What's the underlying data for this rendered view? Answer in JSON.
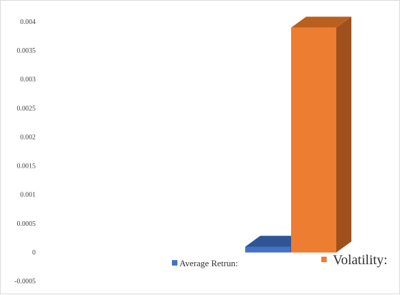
{
  "chart_data": {
    "type": "bar",
    "three_d": true,
    "categories": [
      ""
    ],
    "series": [
      {
        "name": "Average Retrun:",
        "values": [
          0.0001
        ],
        "color": "#4472c4",
        "side_color": "#2f5597",
        "top_color": "#2f5597"
      },
      {
        "name": "Volatility:",
        "values": [
          0.0039
        ],
        "color": "#ed7d31",
        "side_color": "#a0501d",
        "top_color": "#b9601f"
      }
    ],
    "title": "",
    "xlabel": "",
    "ylabel": "",
    "ylim": [
      -0.0005,
      0.004
    ],
    "yticks": [
      "0.004",
      "0.0035",
      "0.003",
      "0.0025",
      "0.002",
      "0.0015",
      "0.001",
      "0.0005",
      "0",
      "-0.0005"
    ],
    "grid": false,
    "legend_position": "bottom-right"
  }
}
